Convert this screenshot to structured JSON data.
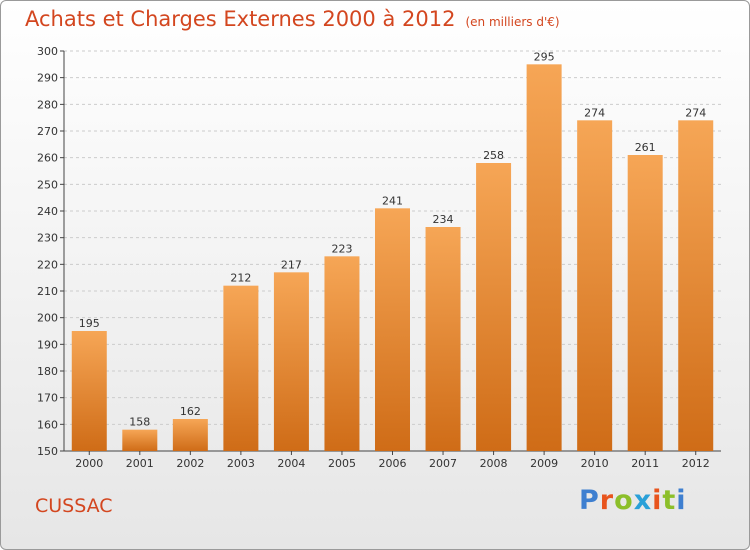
{
  "colors": {
    "title": "#d3461f",
    "bar_top": "#f6a656",
    "bar_bottom": "#cf6c17",
    "grid": "#cccccc",
    "brand_letters": [
      "#3e7fd0",
      "#e8541d",
      "#8cbf2a",
      "#2aa0d8",
      "#e8541d",
      "#8cbf2a",
      "#3e7fd0"
    ]
  },
  "header": {
    "title": "Achats et Charges Externes 2000 à 2012",
    "unit": "(en milliers d'€)"
  },
  "footer": {
    "town": "CUSSAC",
    "brand": "Proxiti"
  },
  "chart_data": {
    "type": "bar",
    "title": "Achats et Charges Externes 2000 à 2012",
    "categories": [
      "2000",
      "2001",
      "2002",
      "2003",
      "2004",
      "2005",
      "2006",
      "2007",
      "2008",
      "2009",
      "2010",
      "2011",
      "2012"
    ],
    "values": [
      195,
      158,
      162,
      212,
      217,
      223,
      241,
      234,
      258,
      295,
      274,
      261,
      274
    ],
    "ylim": [
      150,
      300
    ],
    "yticks": [
      150,
      160,
      170,
      180,
      190,
      200,
      210,
      220,
      230,
      240,
      250,
      260,
      270,
      280,
      290,
      300
    ],
    "grid": "horizontal, dashed",
    "xlabel": "",
    "ylabel": ""
  }
}
